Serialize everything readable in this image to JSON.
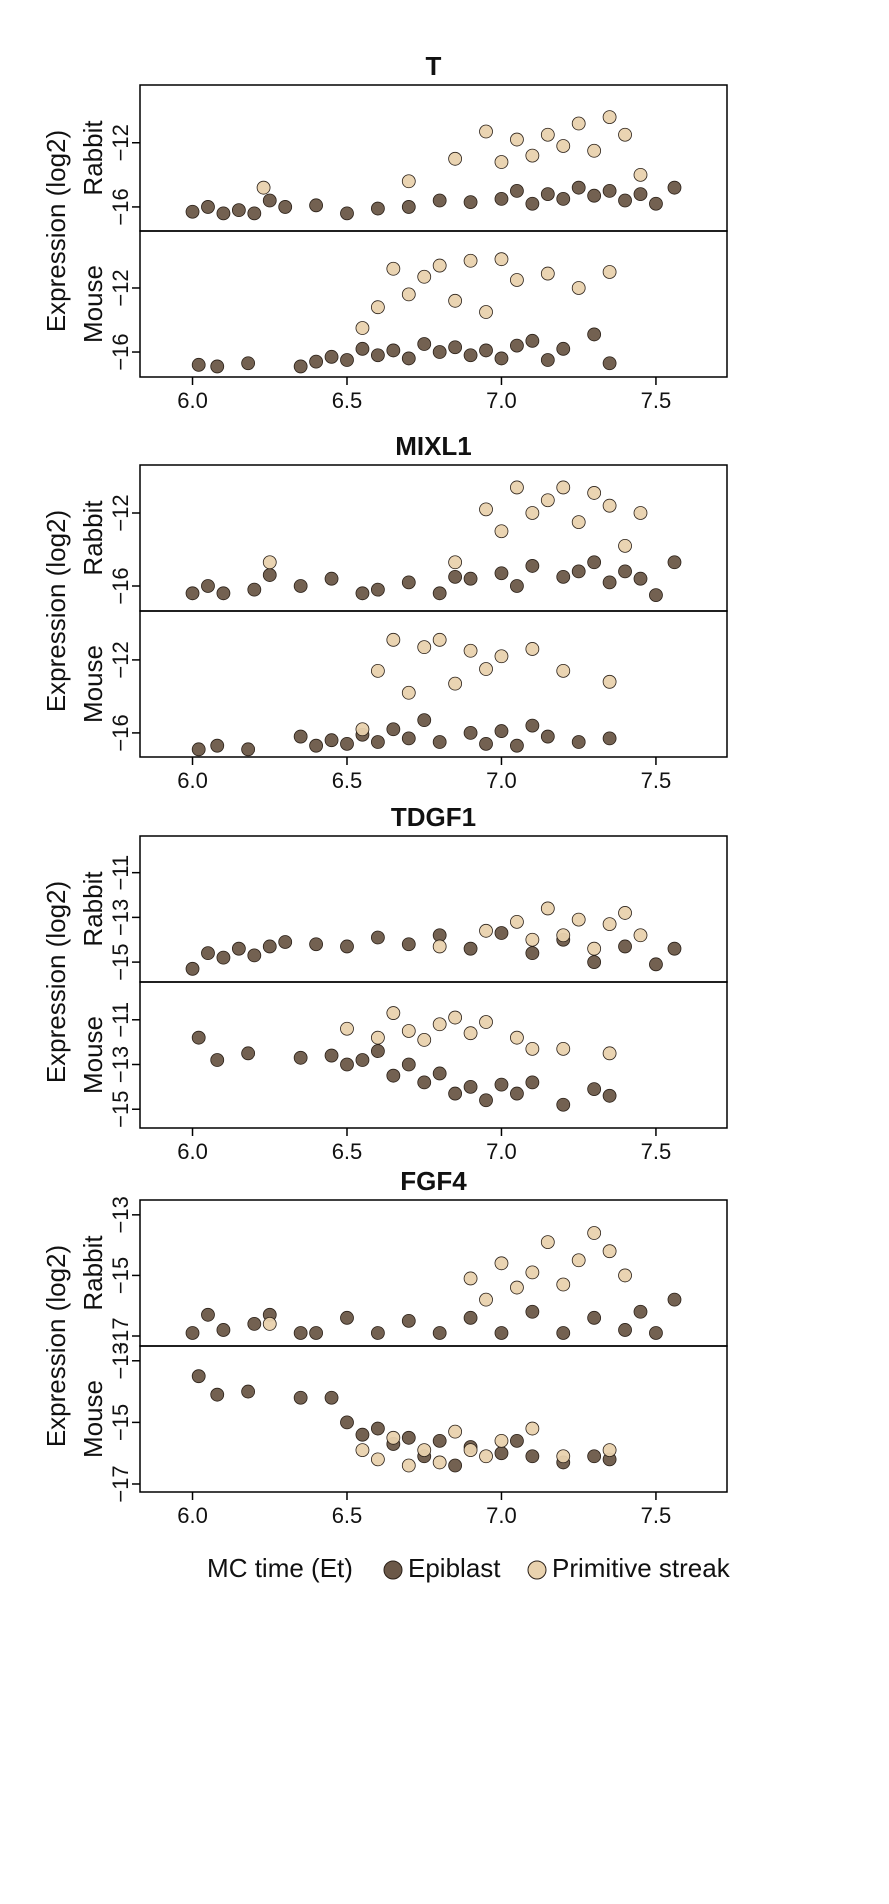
{
  "xlabel": "MC time (Et)",
  "legend": [
    {
      "name": "Epiblast",
      "color": "#6b5848"
    },
    {
      "name": "Primitive streak",
      "color": "#e9d2ae"
    }
  ],
  "chart_data": [
    {
      "type": "scatter",
      "title": "T",
      "ylabel": "Expression (log2)",
      "xlim": [
        5.83,
        7.73
      ],
      "xticks": [
        {
          "value": 6,
          "label": "6.0"
        },
        6.5,
        {
          "value": 7,
          "label": "7.0"
        },
        7.5
      ],
      "panels": [
        {
          "label": "Rabbit",
          "ylim": [
            -17.5,
            -8.4
          ],
          "yticks": [
            {
              "value": -12,
              "label": "−12"
            },
            {
              "value": -16,
              "label": "−16"
            }
          ],
          "series": [
            {
              "x": [
                6.0,
                6.05,
                6.1,
                6.15,
                6.2,
                6.25,
                6.3,
                6.4,
                6.5,
                6.6,
                6.7,
                6.8,
                6.9,
                7.0,
                7.05,
                7.1,
                7.15,
                7.2,
                7.25,
                7.3,
                7.35,
                7.4,
                7.45,
                7.5,
                7.56
              ],
              "values": [
                -16.3,
                -16,
                -16.4,
                -16.2,
                -16.4,
                -15.6,
                -16,
                -15.9,
                -16.4,
                -16.1,
                -16,
                -15.6,
                -15.7,
                -15.5,
                -15,
                -15.8,
                -15.2,
                -15.5,
                -14.8,
                -15.3,
                -15,
                -15.6,
                -15.2,
                -15.8,
                -14.8
              ]
            },
            {
              "x": [
                6.23,
                6.7,
                6.85,
                6.95,
                7.0,
                7.05,
                7.1,
                7.15,
                7.2,
                7.25,
                7.3,
                7.35,
                7.4,
                7.45
              ],
              "values": [
                -14.8,
                -14.4,
                -13,
                -11.3,
                -13.2,
                -11.8,
                -12.8,
                -11.5,
                -12.2,
                -10.8,
                -12.5,
                -10.4,
                -11.5,
                -14
              ]
            }
          ]
        },
        {
          "label": "Mouse",
          "ylim": [
            -17.56,
            -8.44
          ],
          "yticks": [
            {
              "value": -12,
              "label": "−12"
            },
            {
              "value": -16,
              "label": "−16"
            }
          ],
          "series": [
            {
              "x": [
                6.02,
                6.08,
                6.18,
                6.35,
                6.4,
                6.45,
                6.5,
                6.55,
                6.6,
                6.65,
                6.7,
                6.75,
                6.8,
                6.85,
                6.9,
                6.95,
                7.0,
                7.05,
                7.1,
                7.15,
                7.2,
                7.3,
                7.35
              ],
              "values": [
                -16.8,
                -16.9,
                -16.7,
                -16.9,
                -16.6,
                -16.3,
                -16.5,
                -15.8,
                -16.2,
                -15.9,
                -16.4,
                -15.5,
                -16,
                -15.7,
                -16.2,
                -15.9,
                -16.4,
                -15.6,
                -15.3,
                -16.5,
                -15.8,
                -14.9,
                -16.7
              ]
            },
            {
              "x": [
                6.55,
                6.6,
                6.65,
                6.7,
                6.75,
                6.8,
                6.85,
                6.9,
                6.95,
                7.0,
                7.05,
                7.15,
                7.25,
                7.35
              ],
              "values": [
                -14.5,
                -13.2,
                -10.8,
                -12.4,
                -11.3,
                -10.6,
                -12.8,
                -10.3,
                -13.5,
                -10.2,
                -11.5,
                -11.1,
                -12,
                -11
              ]
            }
          ]
        }
      ]
    },
    {
      "type": "scatter",
      "title": "MIXL1",
      "ylabel": "Expression (log2)",
      "xlim": [
        5.83,
        7.73
      ],
      "xticks": [
        {
          "value": 6,
          "label": "6.0"
        },
        6.5,
        {
          "value": 7,
          "label": "7.0"
        },
        7.5
      ],
      "panels": [
        {
          "label": "Rabbit",
          "ylim": [
            -17.37,
            -9.37
          ],
          "yticks": [
            {
              "value": -12,
              "label": "−12"
            },
            {
              "value": -16,
              "label": "−16"
            }
          ],
          "series": [
            {
              "x": [
                6.0,
                6.05,
                6.1,
                6.2,
                6.25,
                6.35,
                6.45,
                6.55,
                6.6,
                6.7,
                6.8,
                6.85,
                6.9,
                7.0,
                7.05,
                7.1,
                7.2,
                7.25,
                7.3,
                7.35,
                7.4,
                7.45,
                7.5,
                7.56
              ],
              "values": [
                -16.4,
                -16,
                -16.4,
                -16.2,
                -15.4,
                -16,
                -15.6,
                -16.4,
                -16.2,
                -15.8,
                -16.4,
                -15.5,
                -15.6,
                -15.3,
                -16,
                -14.9,
                -15.5,
                -15.2,
                -14.7,
                -15.8,
                -15.2,
                -15.6,
                -16.5,
                -14.7
              ]
            },
            {
              "x": [
                6.25,
                6.85,
                6.95,
                7.0,
                7.05,
                7.1,
                7.15,
                7.2,
                7.25,
                7.3,
                7.35,
                7.4,
                7.45
              ],
              "values": [
                -14.7,
                -14.7,
                -11.8,
                -13,
                -10.6,
                -12,
                -11.3,
                -10.6,
                -12.5,
                -10.9,
                -11.6,
                -13.8,
                -12
              ]
            }
          ]
        },
        {
          "label": "Mouse",
          "ylim": [
            -17.32,
            -9.32
          ],
          "yticks": [
            {
              "value": -12,
              "label": "−12"
            },
            {
              "value": -16,
              "label": "−16"
            }
          ],
          "series": [
            {
              "x": [
                6.02,
                6.08,
                6.18,
                6.35,
                6.4,
                6.45,
                6.5,
                6.55,
                6.6,
                6.65,
                6.7,
                6.75,
                6.8,
                6.9,
                6.95,
                7.0,
                7.05,
                7.1,
                7.15,
                7.25,
                7.35
              ],
              "values": [
                -16.9,
                -16.7,
                -16.9,
                -16.2,
                -16.7,
                -16.4,
                -16.6,
                -16.1,
                -16.5,
                -15.8,
                -16.3,
                -15.3,
                -16.5,
                -16,
                -16.6,
                -15.9,
                -16.7,
                -15.6,
                -16.2,
                -16.5,
                -16.3
              ]
            },
            {
              "x": [
                6.55,
                6.6,
                6.65,
                6.7,
                6.75,
                6.8,
                6.85,
                6.9,
                6.95,
                7.0,
                7.1,
                7.2,
                7.35
              ],
              "values": [
                -15.8,
                -12.6,
                -10.9,
                -13.8,
                -11.3,
                -10.9,
                -13.3,
                -11.5,
                -12.5,
                -11.8,
                -11.4,
                -12.6,
                -13.2
              ]
            }
          ]
        }
      ]
    },
    {
      "type": "scatter",
      "title": "TDGF1",
      "ylabel": "Expression (log2)",
      "xlim": [
        5.83,
        7.73
      ],
      "xticks": [
        {
          "value": 6,
          "label": "6.0"
        },
        6.5,
        {
          "value": 7,
          "label": "7.0"
        },
        7.5
      ],
      "panels": [
        {
          "label": "Rabbit",
          "ylim": [
            -15.89,
            -9.36
          ],
          "yticks": [
            {
              "value": -11,
              "label": "−11"
            },
            {
              "value": -13,
              "label": "−13"
            },
            {
              "value": -15,
              "label": "−15"
            }
          ],
          "series": [
            {
              "x": [
                6.0,
                6.05,
                6.1,
                6.15,
                6.2,
                6.25,
                6.3,
                6.4,
                6.5,
                6.6,
                6.7,
                6.8,
                6.9,
                7.0,
                7.1,
                7.2,
                7.3,
                7.4,
                7.5,
                7.56
              ],
              "values": [
                -15.3,
                -14.6,
                -14.8,
                -14.4,
                -14.7,
                -14.3,
                -14.1,
                -14.2,
                -14.3,
                -13.9,
                -14.2,
                -13.8,
                -14.4,
                -13.7,
                -14.6,
                -14,
                -15,
                -14.3,
                -15.1,
                -14.4
              ]
            },
            {
              "x": [
                6.8,
                6.95,
                7.05,
                7.1,
                7.15,
                7.2,
                7.25,
                7.3,
                7.35,
                7.4,
                7.45
              ],
              "values": [
                -14.3,
                -13.6,
                -13.2,
                -14,
                -12.6,
                -13.8,
                -13.1,
                -14.4,
                -13.3,
                -12.8,
                -13.8
              ]
            }
          ]
        },
        {
          "label": "Mouse",
          "ylim": [
            -15.84,
            -9.31
          ],
          "yticks": [
            {
              "value": -11,
              "label": "−11"
            },
            {
              "value": -13,
              "label": "−13"
            },
            {
              "value": -15,
              "label": "−15"
            }
          ],
          "series": [
            {
              "x": [
                6.02,
                6.08,
                6.18,
                6.35,
                6.45,
                6.5,
                6.55,
                6.6,
                6.65,
                6.7,
                6.75,
                6.8,
                6.85,
                6.9,
                6.95,
                7.0,
                7.05,
                7.1,
                7.2,
                7.3,
                7.35
              ],
              "values": [
                -11.8,
                -12.8,
                -12.5,
                -12.7,
                -12.6,
                -13,
                -12.8,
                -12.4,
                -13.5,
                -13,
                -13.8,
                -13.4,
                -14.3,
                -14,
                -14.6,
                -13.9,
                -14.3,
                -13.8,
                -14.8,
                -14.1,
                -14.4
              ]
            },
            {
              "x": [
                6.5,
                6.6,
                6.65,
                6.7,
                6.75,
                6.8,
                6.85,
                6.9,
                6.95,
                7.05,
                7.1,
                7.2,
                7.35
              ],
              "values": [
                -11.4,
                -11.8,
                -10.7,
                -11.5,
                -11.9,
                -11.2,
                -10.9,
                -11.6,
                -11.1,
                -11.8,
                -12.3,
                -12.3,
                -12.5
              ]
            }
          ]
        }
      ]
    },
    {
      "type": "scatter",
      "title": "FGF4",
      "ylabel": "Expression (log2)",
      "xlim": [
        5.83,
        7.73
      ],
      "xticks": [
        {
          "value": 6,
          "label": "6.0"
        },
        6.5,
        {
          "value": 7,
          "label": "7.0"
        },
        7.5
      ],
      "panels": [
        {
          "label": "Rabbit",
          "ylim": [
            -17.33,
            -12.51
          ],
          "yticks": [
            {
              "value": -13,
              "label": "−13"
            },
            {
              "value": -15,
              "label": "−15"
            },
            {
              "value": -17,
              "label": "−17"
            }
          ],
          "series": [
            {
              "x": [
                6.0,
                6.05,
                6.1,
                6.2,
                6.25,
                6.35,
                6.4,
                6.5,
                6.6,
                6.7,
                6.8,
                6.9,
                7.0,
                7.1,
                7.2,
                7.3,
                7.4,
                7.45,
                7.5,
                7.56
              ],
              "values": [
                -16.9,
                -16.3,
                -16.8,
                -16.6,
                -16.3,
                -16.9,
                -16.9,
                -16.4,
                -16.9,
                -16.5,
                -16.9,
                -16.4,
                -16.9,
                -16.2,
                -16.9,
                -16.4,
                -16.8,
                -16.2,
                -16.9,
                -15.8
              ]
            },
            {
              "x": [
                6.25,
                6.9,
                6.95,
                7.0,
                7.05,
                7.1,
                7.15,
                7.2,
                7.25,
                7.3,
                7.35,
                7.4
              ],
              "values": [
                -16.6,
                -15.1,
                -15.8,
                -14.6,
                -15.4,
                -14.9,
                -13.9,
                -15.3,
                -14.5,
                -13.6,
                -14.2,
                -15
              ]
            }
          ]
        },
        {
          "label": "Mouse",
          "ylim": [
            -17.26,
            -12.52
          ],
          "yticks": [
            {
              "value": -13,
              "label": "−13"
            },
            {
              "value": -15,
              "label": "−15"
            },
            {
              "value": -17,
              "label": "−17"
            }
          ],
          "series": [
            {
              "x": [
                6.02,
                6.08,
                6.18,
                6.35,
                6.45,
                6.5,
                6.55,
                6.6,
                6.65,
                6.7,
                6.75,
                6.8,
                6.85,
                6.9,
                7.0,
                7.05,
                7.1,
                7.2,
                7.3,
                7.35
              ],
              "values": [
                -13.5,
                -14.1,
                -14,
                -14.2,
                -14.2,
                -15,
                -15.4,
                -15.2,
                -15.7,
                -15.5,
                -16.1,
                -15.6,
                -16.4,
                -15.8,
                -16,
                -15.6,
                -16.1,
                -16.3,
                -16.1,
                -16.2
              ]
            },
            {
              "x": [
                6.55,
                6.6,
                6.65,
                6.7,
                6.75,
                6.8,
                6.85,
                6.9,
                6.95,
                7.0,
                7.1,
                7.2,
                7.35
              ],
              "values": [
                -15.9,
                -16.2,
                -15.5,
                -16.4,
                -15.9,
                -16.3,
                -15.3,
                -15.9,
                -16.1,
                -15.6,
                -15.2,
                -16.1,
                -15.9
              ]
            }
          ]
        }
      ]
    }
  ]
}
